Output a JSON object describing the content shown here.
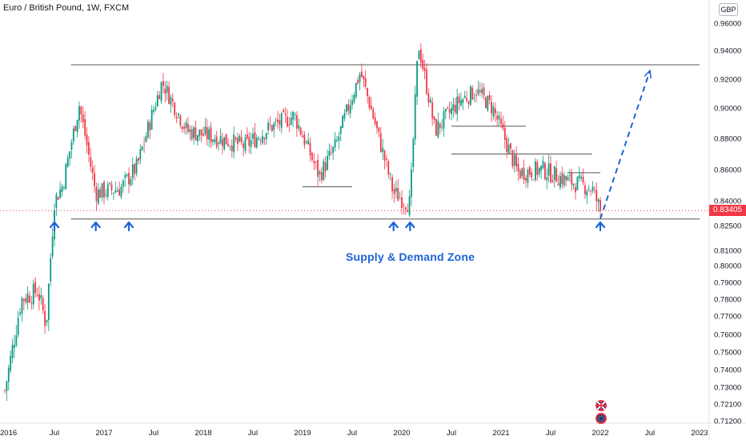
{
  "chart_title": "Euro / British Pound, 1W, FXCM",
  "currency_badge": "GBP",
  "annotation": "Supply & Demand Zone",
  "last_price_label": "0.83405",
  "colors": {
    "up": "#089981",
    "down": "#f23645",
    "annotation": "#1e63d6",
    "level_line": "#555555",
    "dashed_arrow": "#1e63d6",
    "last_price": "#f23645"
  },
  "chart_data": {
    "type": "candlestick",
    "y_axis": {
      "ticks": [
        "0.96000",
        "0.94000",
        "0.92000",
        "0.90000",
        "0.88000",
        "0.86000",
        "0.84000",
        "0.82500",
        "0.81000",
        "0.80000",
        "0.79000",
        "0.78000",
        "0.77000",
        "0.76000",
        "0.75000",
        "0.74000",
        "0.73000",
        "0.72100",
        "0.71200"
      ],
      "scale": "non-linear (tick spacing varies)",
      "range": [
        0.712,
        0.965
      ]
    },
    "x_axis": {
      "ticks": [
        "2016",
        "Jul",
        "2017",
        "Jul",
        "2018",
        "Jul",
        "2019",
        "Jul",
        "2020",
        "Jul",
        "2021",
        "Jul",
        "2022",
        "Jul",
        "2023"
      ]
    },
    "approx_price_path": [
      [
        "2016-01",
        0.728
      ],
      [
        "2016-03",
        0.78
      ],
      [
        "2016-05",
        0.785
      ],
      [
        "2016-06",
        0.765
      ],
      [
        "2016-07",
        0.84
      ],
      [
        "2016-08",
        0.85
      ],
      [
        "2016-10",
        0.902
      ],
      [
        "2016-12",
        0.845
      ],
      [
        "2017-03",
        0.848
      ],
      [
        "2017-05",
        0.862
      ],
      [
        "2017-08",
        0.918
      ],
      [
        "2017-11",
        0.885
      ],
      [
        "2018-03",
        0.88
      ],
      [
        "2018-06",
        0.875
      ],
      [
        "2018-09",
        0.887
      ],
      [
        "2018-12",
        0.895
      ],
      [
        "2019-03",
        0.856
      ],
      [
        "2019-05",
        0.875
      ],
      [
        "2019-08",
        0.925
      ],
      [
        "2019-12",
        0.845
      ],
      [
        "2020-02",
        0.838
      ],
      [
        "2020-03",
        0.945
      ],
      [
        "2020-05",
        0.885
      ],
      [
        "2020-08",
        0.905
      ],
      [
        "2020-10",
        0.912
      ],
      [
        "2020-12",
        0.9
      ],
      [
        "2021-03",
        0.858
      ],
      [
        "2021-06",
        0.86
      ],
      [
        "2021-09",
        0.853
      ],
      [
        "2021-12",
        0.848
      ],
      [
        "2022-01",
        0.834
      ]
    ],
    "horizontal_levels": [
      {
        "value": 0.93,
        "from": "2016-09",
        "to": "2023-01"
      },
      {
        "value": 0.829,
        "from": "2016-09",
        "to": "2023-01"
      },
      {
        "value": 0.849,
        "from": "2019-01",
        "to": "2019-07"
      },
      {
        "value": 0.888,
        "from": "2020-07",
        "to": "2021-04"
      },
      {
        "value": 0.87,
        "from": "2020-07",
        "to": "2021-12"
      },
      {
        "value": 0.858,
        "from": "2021-09",
        "to": "2022-01"
      }
    ],
    "support_arrows": [
      "2016-07",
      "2016-12",
      "2017-04",
      "2019-12",
      "2020-02",
      "2022-01"
    ],
    "projection": {
      "from": [
        "2022-01",
        0.829
      ],
      "to": [
        "2022-07",
        0.926
      ],
      "style": "dashed"
    },
    "last_price": 0.83405
  }
}
